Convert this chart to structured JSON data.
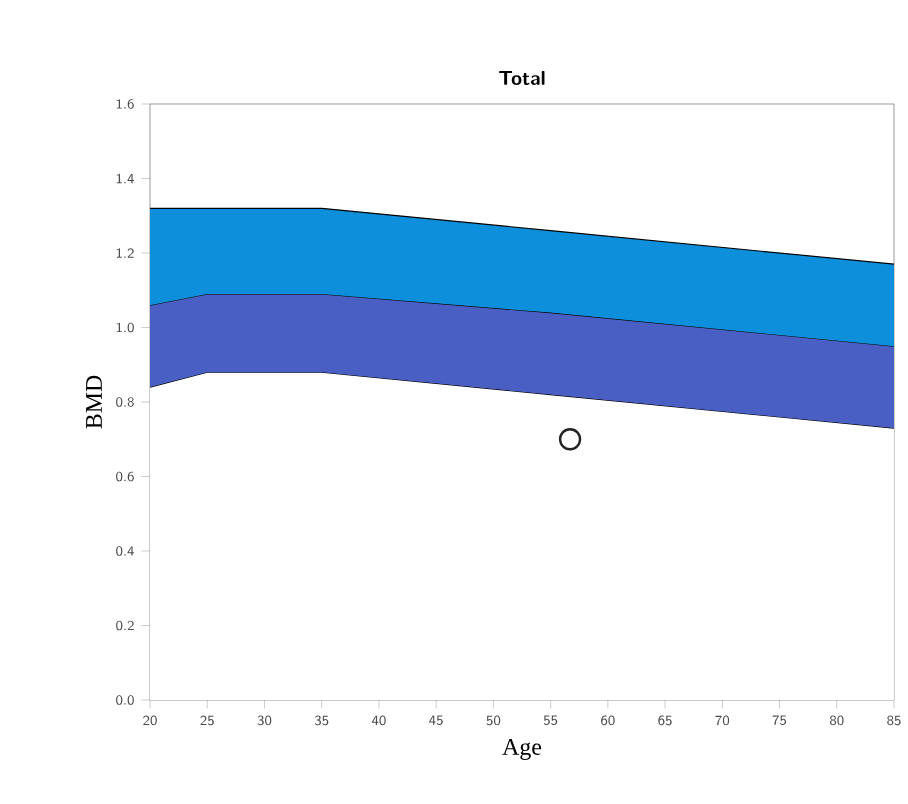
{
  "chart_data": {
    "type": "area",
    "title": "Total",
    "xlabel": "Age",
    "ylabel": "BMD",
    "x": [
      20,
      25,
      35,
      55,
      85
    ],
    "xlim": [
      20,
      85
    ],
    "xticks": [
      20,
      25,
      30,
      35,
      40,
      45,
      50,
      55,
      60,
      65,
      70,
      75,
      80,
      85
    ],
    "ylim": [
      0,
      1.6
    ],
    "yticks": [
      {
        "value": 0,
        "label": "0.0"
      },
      0.2,
      0.4,
      0.6,
      0.8,
      {
        "value": 1,
        "label": "1.0"
      },
      1.2,
      1.4,
      1.6
    ],
    "stacked": true,
    "series": [
      {
        "color": "#ffffff",
        "values": [
          0.84,
          0.88,
          0.88,
          0.82,
          0.73
        ]
      },
      {
        "color": "#4a5fc4",
        "values": [
          0.22,
          0.21,
          0.21,
          0.22,
          0.22
        ]
      },
      {
        "color": "#0e8fdc",
        "values": [
          0.26,
          0.23,
          0.23,
          0.22,
          0.22
        ]
      },
      {
        "type": "scatter",
        "color": "#222222",
        "x": [
          56.7
        ],
        "values": [
          0.7
        ],
        "marker": "circle"
      }
    ],
    "grid": false
  }
}
